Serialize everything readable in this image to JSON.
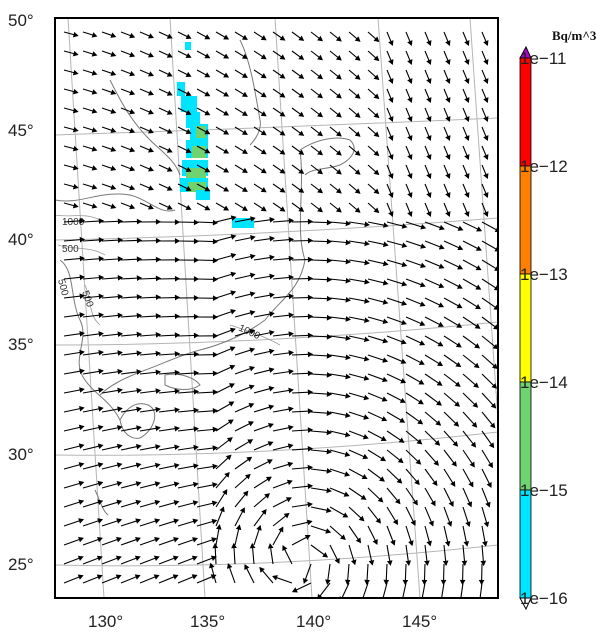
{
  "map": {
    "lat_labels": [
      "50°",
      "45°",
      "40°",
      "35°",
      "30°",
      "25°"
    ],
    "lon_labels": [
      "130°",
      "135°",
      "140°",
      "145°"
    ],
    "contour_labels": [
      "1000",
      "500",
      "500",
      "1000",
      "500"
    ]
  },
  "colorbar": {
    "units": "Bq/m^3",
    "labels": [
      "1e−11",
      "1e−12",
      "1e−13",
      "1e−14",
      "1e−15",
      "1e−16"
    ],
    "colors": [
      "#ff0000",
      "#ff7f00",
      "#ffff00",
      "#6fd36f",
      "#00e5ff"
    ],
    "top_marker_color": "#b000d0",
    "bottom_marker_color": "#ffffff"
  },
  "plume": {
    "color_low": "#00e5ff",
    "color_mid": "#6fd36f"
  }
}
